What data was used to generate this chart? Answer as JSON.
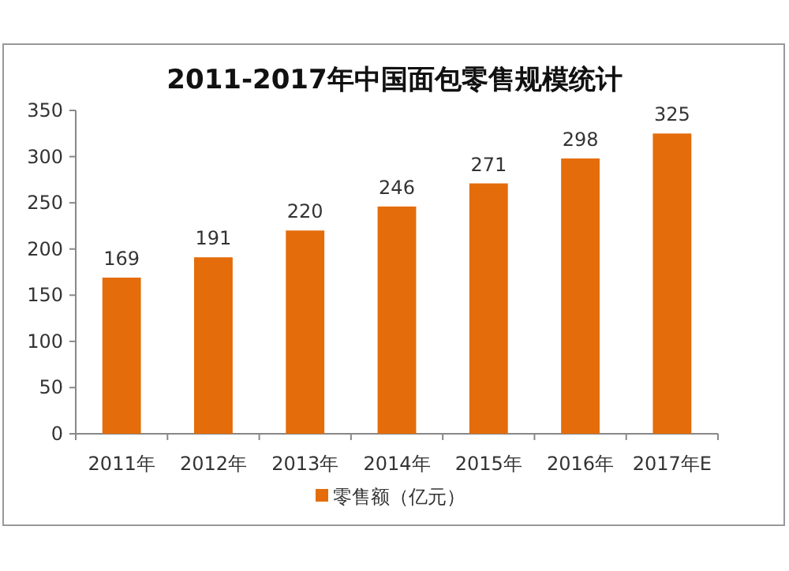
{
  "chart_data": {
    "type": "bar",
    "title": "2011-2017年中国面包零售规模统计",
    "categories": [
      "2011年",
      "2012年",
      "2013年",
      "2014年",
      "2015年",
      "2016年",
      "2017年E"
    ],
    "series": [
      {
        "name": "零售额（亿元）",
        "color": "#e46c0a",
        "values": [
          169,
          191,
          220,
          246,
          271,
          298,
          325
        ]
      }
    ],
    "ylim": [
      0,
      350
    ],
    "yticks": [
      0,
      50,
      100,
      150,
      200,
      250,
      300,
      350
    ],
    "data_labels": true,
    "legend": "bottom"
  }
}
